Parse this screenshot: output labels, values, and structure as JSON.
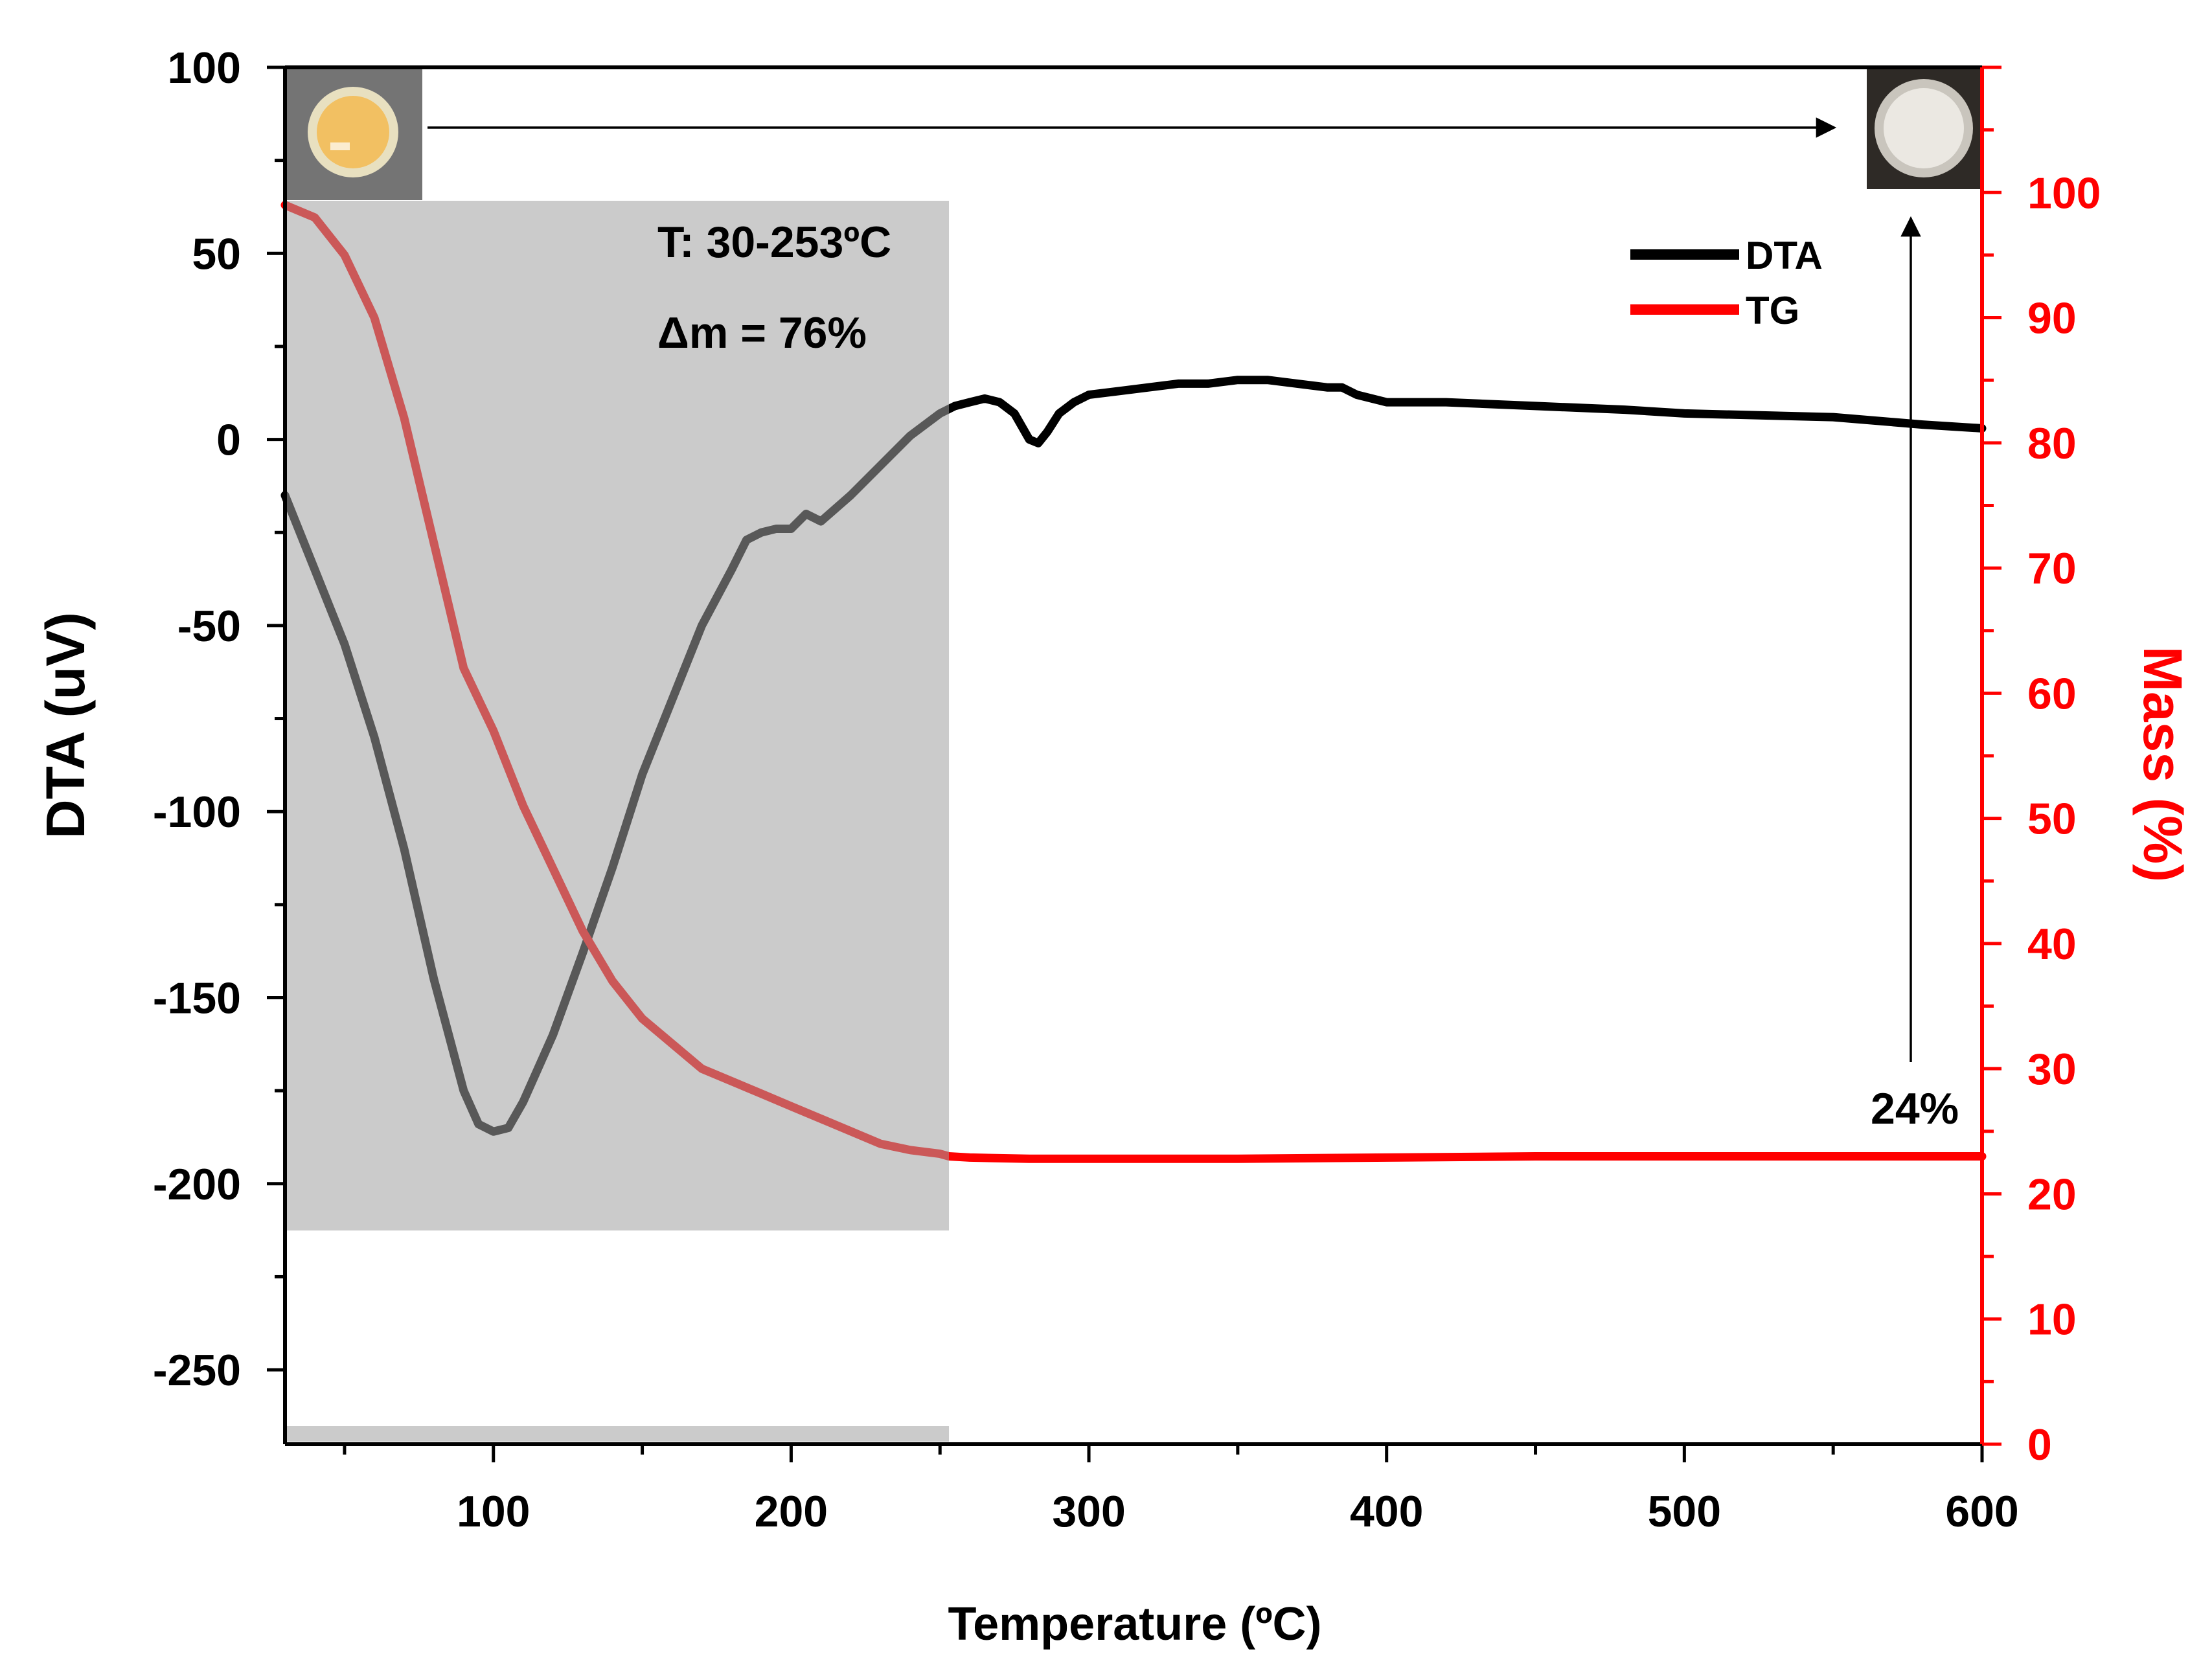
{
  "chart_data": {
    "type": "line",
    "xlabel": "Temperature (ºC)",
    "ylabel": "DTA (uV)",
    "y2label": "Mass (%)",
    "xlim": [
      30,
      600
    ],
    "ylim": [
      -270,
      100
    ],
    "y2lim": [
      0,
      110
    ],
    "x_ticks": [
      100,
      200,
      300,
      400,
      500,
      600
    ],
    "y_ticks": [
      100,
      50,
      0,
      -50,
      -100,
      -150,
      -200,
      -250
    ],
    "y2_ticks": [
      0,
      10,
      20,
      30,
      40,
      50,
      60,
      70,
      80,
      90,
      100
    ],
    "legend_position": "top-right",
    "series": [
      {
        "name": "DTA",
        "axis": "left",
        "color": "#000000",
        "x": [
          30,
          40,
          50,
          60,
          70,
          80,
          90,
          95,
          100,
          105,
          110,
          120,
          130,
          140,
          150,
          160,
          170,
          180,
          185,
          190,
          195,
          200,
          205,
          210,
          220,
          230,
          240,
          250,
          255,
          260,
          265,
          270,
          275,
          280,
          283,
          286,
          290,
          295,
          300,
          310,
          320,
          330,
          340,
          350,
          360,
          370,
          380,
          385,
          390,
          400,
          420,
          450,
          480,
          500,
          550,
          580,
          600
        ],
        "y": [
          -15,
          -35,
          -55,
          -80,
          -110,
          -145,
          -175,
          -184,
          -186,
          -185,
          -178,
          -160,
          -138,
          -115,
          -90,
          -70,
          -50,
          -35,
          -27,
          -25,
          -24,
          -24,
          -20,
          -22,
          -15,
          -7,
          1,
          7,
          9,
          10,
          11,
          10,
          7,
          0,
          -1,
          2,
          7,
          10,
          12,
          13,
          14,
          15,
          15,
          16,
          16,
          15,
          14,
          14,
          12,
          10,
          10,
          9,
          8,
          7,
          6,
          4,
          3
        ]
      },
      {
        "name": "TG",
        "axis": "right",
        "color": "#ff0000",
        "x": [
          30,
          40,
          50,
          60,
          70,
          80,
          90,
          100,
          110,
          120,
          130,
          140,
          150,
          160,
          170,
          180,
          190,
          200,
          210,
          220,
          230,
          240,
          250,
          253,
          260,
          280,
          300,
          350,
          400,
          450,
          500,
          550,
          600
        ],
        "y": [
          99,
          98,
          95,
          90,
          82,
          72,
          62,
          57,
          51,
          46,
          41,
          37,
          34,
          32,
          30,
          29,
          28,
          27,
          26,
          25,
          24,
          23.5,
          23.2,
          23,
          22.9,
          22.8,
          22.8,
          22.8,
          22.9,
          23,
          23,
          23,
          23
        ]
      }
    ],
    "annotations": [
      {
        "text": "T: 30-253ºC"
      },
      {
        "text": "Δm = 76%"
      },
      {
        "text": "24%"
      }
    ],
    "shaded_region": {
      "x_range": [
        30,
        253
      ],
      "color": "#a0a0a0"
    }
  }
}
